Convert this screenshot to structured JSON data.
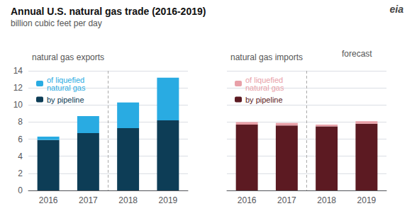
{
  "title": "Annual U.S. natural gas trade (2016-2019)",
  "subtitle": "billion cubic feet per day",
  "annotations": [
    "eia"
  ],
  "chart_data": [
    {
      "type": "bar",
      "title": "natural gas exports",
      "categories": [
        "2016",
        "2017",
        "2018",
        "2019"
      ],
      "series": [
        {
          "name": "by pipeline",
          "color": "#0d3d56",
          "values": [
            5.9,
            6.7,
            7.3,
            8.2
          ]
        },
        {
          "name": "of liquefied\nnatural gas",
          "color": "#29abe2",
          "values": [
            0.4,
            2.0,
            3.0,
            5.0
          ]
        }
      ],
      "stacked": true,
      "ylim": [
        0,
        14
      ],
      "yticks": [
        0,
        2,
        4,
        6,
        8,
        10,
        12,
        14
      ],
      "grid": true,
      "legend": "upper left"
    },
    {
      "type": "bar",
      "title": "natural gas imports",
      "categories": [
        "2016",
        "2017",
        "2018",
        "2019"
      ],
      "series": [
        {
          "name": "by pipeline",
          "color": "#5c1a22",
          "values": [
            7.7,
            7.6,
            7.5,
            7.8
          ]
        },
        {
          "name": "of liquefied\nnatural gas",
          "color": "#e8a0a8",
          "values": [
            0.3,
            0.3,
            0.2,
            0.3
          ]
        }
      ],
      "stacked": true,
      "ylim": [
        0,
        14
      ],
      "yticks": [
        0,
        2,
        4,
        6,
        8,
        10,
        12,
        14
      ],
      "grid": true,
      "legend": "upper left",
      "tick_labels": "x",
      "annotations": [
        "forecast"
      ]
    }
  ]
}
